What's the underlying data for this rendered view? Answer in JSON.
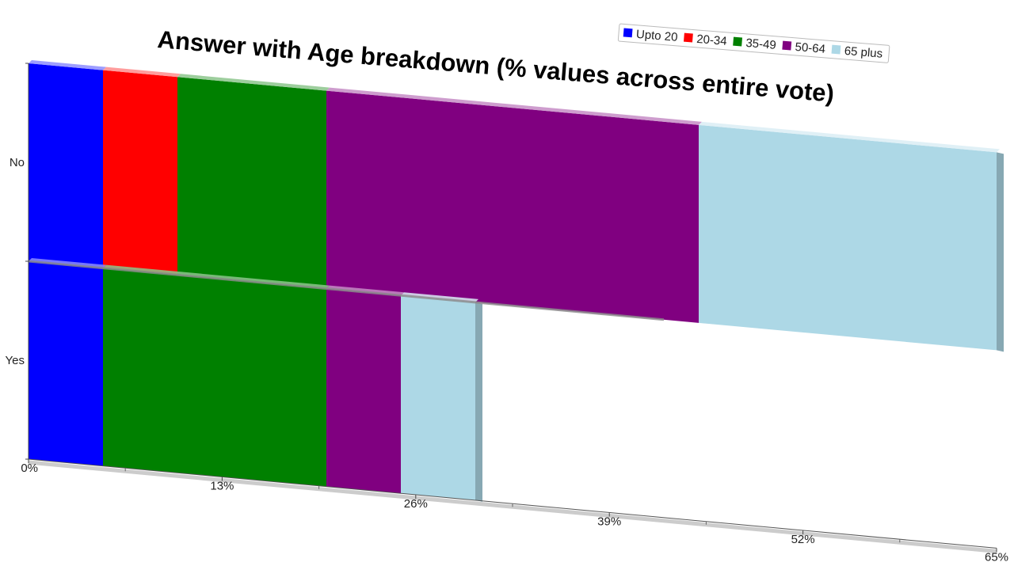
{
  "chart_data": {
    "type": "bar",
    "orientation": "horizontal",
    "stacked": true,
    "style": "3d-skewed",
    "title": "Answer with Age breakdown (% values across entire vote)",
    "categories": [
      "No",
      "Yes"
    ],
    "series": [
      {
        "name": "Upto 20",
        "color": "#0000ff",
        "values": [
          5,
          5
        ]
      },
      {
        "name": "20-34",
        "color": "#ff0000",
        "values": [
          5,
          0
        ]
      },
      {
        "name": "35-49",
        "color": "#008000",
        "values": [
          10,
          15
        ]
      },
      {
        "name": "50-64",
        "color": "#800080",
        "values": [
          25,
          5
        ]
      },
      {
        "name": "65 plus",
        "color": "#add8e6",
        "values": [
          20,
          5
        ]
      }
    ],
    "xlim": [
      0,
      65
    ],
    "xticks": [
      0,
      13,
      26,
      39,
      52,
      65
    ],
    "xtick_labels": [
      "0%",
      "13%",
      "26%",
      "39%",
      "52%",
      "65%"
    ],
    "legend_position": "top-right",
    "grid": false
  }
}
